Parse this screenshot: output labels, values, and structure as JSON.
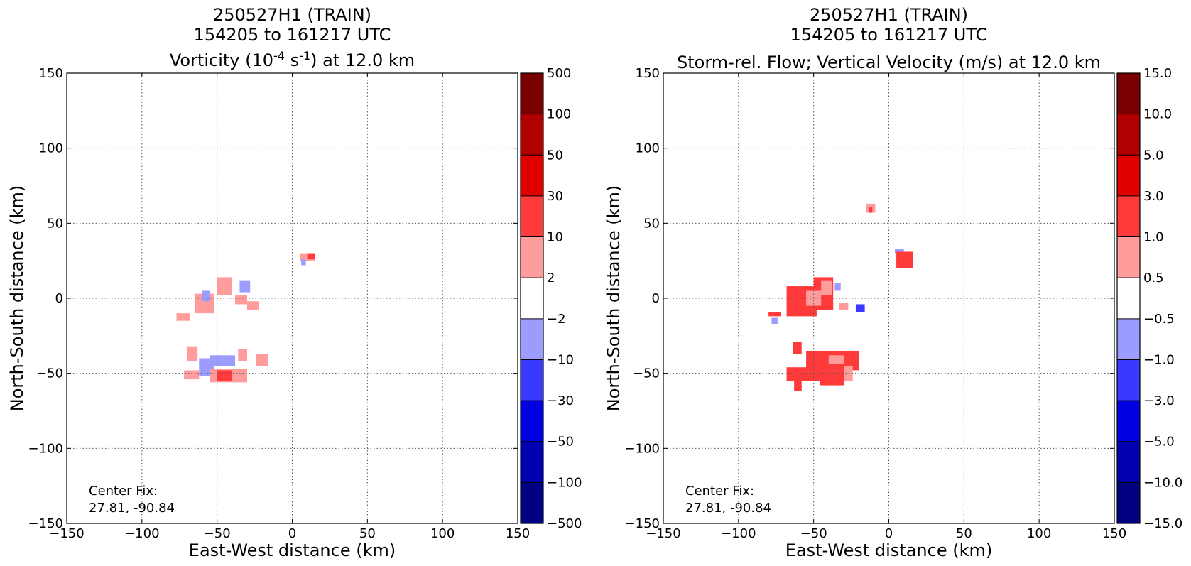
{
  "chart_data": [
    {
      "type": "heatmap",
      "title_lines": [
        "250527H1 (TRAIN)",
        "154205 to 161217 UTC"
      ],
      "title_third": {
        "pre": "Vorticity (10",
        "sup1": "-4",
        "mid": " s",
        "sup2": "-1",
        "post": ") at 12.0 km"
      },
      "xlabel": "East-West distance (km)",
      "ylabel": "North-South distance (km)",
      "xlim": [
        -150,
        150
      ],
      "ylim": [
        -150,
        150
      ],
      "xticks": [
        "−150",
        "−100",
        "−50",
        "0",
        "50",
        "100",
        "150"
      ],
      "yticks": [
        "−150",
        "−100",
        "−50",
        "0",
        "50",
        "100",
        "150"
      ],
      "tick_values": [
        -150,
        -100,
        -50,
        0,
        50,
        100,
        150
      ],
      "grid": true,
      "annotation": [
        "Center Fix:",
        "27.81, -90.84"
      ],
      "colorbar": {
        "levels": [
          "500",
          "100",
          "50",
          "30",
          "10",
          "2",
          "−2",
          "−10",
          "−30",
          "−50",
          "−100",
          "−500"
        ],
        "colors": [
          "#7a0000",
          "#b00000",
          "#e00000",
          "#ff3a3a",
          "#ff9c9c",
          "#ffffff",
          "#9c9cff",
          "#3a3aff",
          "#0000e0",
          "#0000b0",
          "#000080"
        ]
      },
      "regions": [
        {
          "x": [
            -77,
            -68
          ],
          "y": [
            -15,
            -10
          ],
          "color": "#ff9c9c"
        },
        {
          "x": [
            -65,
            -52
          ],
          "y": [
            -10,
            3
          ],
          "color": "#ff9c9c"
        },
        {
          "x": [
            -50,
            -40
          ],
          "y": [
            2,
            14
          ],
          "color": "#ff9c9c"
        },
        {
          "x": [
            -35,
            -28
          ],
          "y": [
            4,
            12
          ],
          "color": "#9c9cff"
        },
        {
          "x": [
            -38,
            -30
          ],
          "y": [
            -4,
            2
          ],
          "color": "#ff9c9c"
        },
        {
          "x": [
            -30,
            -22
          ],
          "y": [
            -8,
            -2
          ],
          "color": "#ff9c9c"
        },
        {
          "x": [
            -60,
            -55
          ],
          "y": [
            -2,
            5
          ],
          "color": "#9c9cff"
        },
        {
          "x": [
            5,
            15
          ],
          "y": [
            25,
            30
          ],
          "color": "#ff9c9c"
        },
        {
          "x": [
            10,
            15
          ],
          "y": [
            26,
            30
          ],
          "color": "#ff3a3a"
        },
        {
          "x": [
            6,
            9
          ],
          "y": [
            22,
            26
          ],
          "color": "#9c9cff"
        },
        {
          "x": [
            -70,
            -63
          ],
          "y": [
            -42,
            -32
          ],
          "color": "#ff9c9c"
        },
        {
          "x": [
            -62,
            -52
          ],
          "y": [
            -45,
            -40
          ],
          "color": "#9c9cff"
        },
        {
          "x": [
            -55,
            -38
          ],
          "y": [
            -45,
            -38
          ],
          "color": "#9c9cff"
        },
        {
          "x": [
            -36,
            -30
          ],
          "y": [
            -42,
            -34
          ],
          "color": "#ff9c9c"
        },
        {
          "x": [
            -24,
            -16
          ],
          "y": [
            -45,
            -37
          ],
          "color": "#ff9c9c"
        },
        {
          "x": [
            -72,
            -62
          ],
          "y": [
            -54,
            -48
          ],
          "color": "#ff9c9c"
        },
        {
          "x": [
            -62,
            -52
          ],
          "y": [
            -52,
            -45
          ],
          "color": "#9c9cff"
        },
        {
          "x": [
            -55,
            -30
          ],
          "y": [
            -56,
            -47
          ],
          "color": "#ff9c9c"
        },
        {
          "x": [
            -50,
            -40
          ],
          "y": [
            -55,
            -48
          ],
          "color": "#ff3a3a"
        }
      ]
    },
    {
      "type": "heatmap",
      "title_lines": [
        "250527H1 (TRAIN)",
        "154205 to 161217 UTC",
        "Storm-rel. Flow; Vertical Velocity (m/s) at 12.0 km"
      ],
      "xlabel": "East-West distance (km)",
      "ylabel": "North-South distance (km)",
      "xlim": [
        -150,
        150
      ],
      "ylim": [
        -150,
        150
      ],
      "xticks": [
        "−150",
        "−100",
        "−50",
        "0",
        "50",
        "100",
        "150"
      ],
      "yticks": [
        "−150",
        "−100",
        "−50",
        "0",
        "50",
        "100",
        "150"
      ],
      "tick_values": [
        -150,
        -100,
        -50,
        0,
        50,
        100,
        150
      ],
      "grid": true,
      "annotation": [
        "Center Fix:",
        "27.81, -90.84"
      ],
      "colorbar": {
        "levels": [
          "15.0",
          "10.0",
          "5.0",
          "3.0",
          "1.0",
          "0.5",
          "−0.5",
          "−1.0",
          "−3.0",
          "−5.0",
          "−10.0",
          "−15.0"
        ],
        "colors": [
          "#7a0000",
          "#b00000",
          "#e00000",
          "#ff3a3a",
          "#ff9c9c",
          "#ffffff",
          "#9c9cff",
          "#3a3aff",
          "#0000e0",
          "#0000b0",
          "#000080"
        ]
      },
      "regions": [
        {
          "x": [
            -15,
            -9
          ],
          "y": [
            57,
            63
          ],
          "color": "#ff9c9c"
        },
        {
          "x": [
            -13,
            -11
          ],
          "y": [
            57,
            61
          ],
          "color": "#ff3a3a"
        },
        {
          "x": [
            4,
            10
          ],
          "y": [
            30,
            33
          ],
          "color": "#9c9cff"
        },
        {
          "x": [
            5,
            16
          ],
          "y": [
            20,
            31
          ],
          "color": "#ff3a3a"
        },
        {
          "x": [
            -68,
            -48
          ],
          "y": [
            -12,
            8
          ],
          "color": "#ff3a3a"
        },
        {
          "x": [
            -50,
            -37
          ],
          "y": [
            -8,
            14
          ],
          "color": "#ff3a3a"
        },
        {
          "x": [
            -55,
            -45
          ],
          "y": [
            -5,
            5
          ],
          "color": "#ff9c9c"
        },
        {
          "x": [
            -45,
            -38
          ],
          "y": [
            2,
            12
          ],
          "color": "#ff9c9c"
        },
        {
          "x": [
            -36,
            -32
          ],
          "y": [
            5,
            10
          ],
          "color": "#9c9cff"
        },
        {
          "x": [
            -33,
            -27
          ],
          "y": [
            -8,
            -3
          ],
          "color": "#ff9c9c"
        },
        {
          "x": [
            -22,
            -16
          ],
          "y": [
            -9,
            -4
          ],
          "color": "#3a3aff"
        },
        {
          "x": [
            -80,
            -72
          ],
          "y": [
            -12,
            -9
          ],
          "color": "#ff3a3a"
        },
        {
          "x": [
            -78,
            -74
          ],
          "y": [
            -17,
            -13
          ],
          "color": "#9c9cff"
        },
        {
          "x": [
            -64,
            -58
          ],
          "y": [
            -37,
            -29
          ],
          "color": "#ff3a3a"
        },
        {
          "x": [
            -55,
            -20
          ],
          "y": [
            -48,
            -35
          ],
          "color": "#ff3a3a"
        },
        {
          "x": [
            -46,
            -30
          ],
          "y": [
            -58,
            -48
          ],
          "color": "#ff3a3a"
        },
        {
          "x": [
            -40,
            -30
          ],
          "y": [
            -44,
            -38
          ],
          "color": "#ff9c9c"
        },
        {
          "x": [
            -68,
            -45
          ],
          "y": [
            -55,
            -46
          ],
          "color": "#ff3a3a"
        },
        {
          "x": [
            -63,
            -58
          ],
          "y": [
            -62,
            -55
          ],
          "color": "#ff3a3a"
        },
        {
          "x": [
            -30,
            -24
          ],
          "y": [
            -55,
            -45
          ],
          "color": "#ff9c9c"
        }
      ]
    }
  ]
}
